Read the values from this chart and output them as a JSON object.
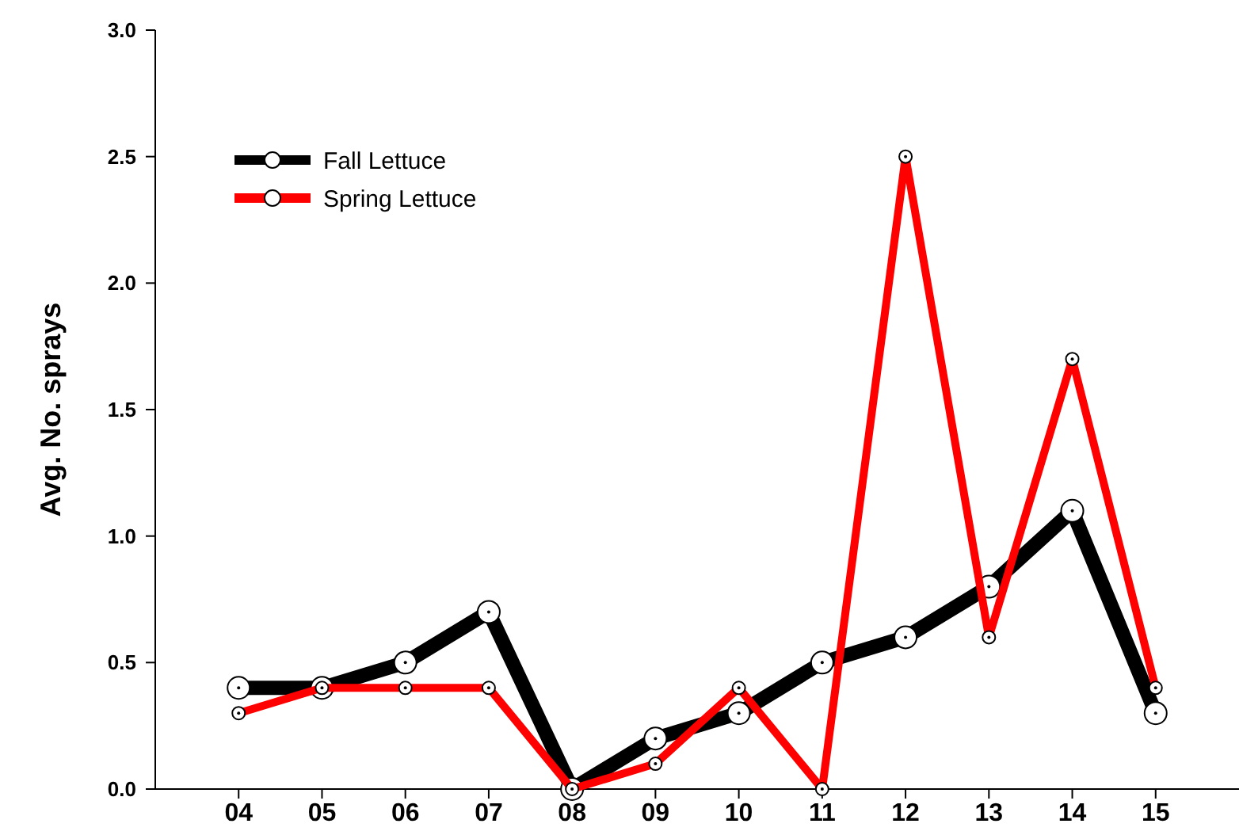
{
  "chart_data": {
    "type": "line",
    "ylabel": "Avg. No. sprays",
    "categories": [
      "04",
      "05",
      "06",
      "07",
      "08",
      "09",
      "10",
      "11",
      "12",
      "13",
      "14",
      "15"
    ],
    "series": [
      {
        "name": "Fall Lettuce",
        "color": "#000000",
        "values": [
          0.4,
          0.4,
          0.5,
          0.7,
          0.0,
          0.2,
          0.3,
          0.5,
          0.6,
          0.8,
          1.1,
          0.3
        ]
      },
      {
        "name": "Spring Lettuce",
        "color": "#ff0000",
        "values": [
          0.3,
          0.4,
          0.4,
          0.4,
          0.0,
          0.1,
          0.4,
          0.0,
          2.5,
          0.6,
          1.7,
          0.4
        ]
      }
    ],
    "ylim": [
      0,
      3
    ],
    "yticks": [
      {
        "value": 0,
        "label": "0.0"
      },
      {
        "value": 0.5,
        "label": "0.5"
      },
      {
        "value": 1,
        "label": "1.0"
      },
      {
        "value": 1.5,
        "label": "1.5"
      },
      {
        "value": 2,
        "label": "2.0"
      },
      {
        "value": 2.5,
        "label": "2.5"
      },
      {
        "value": 3,
        "label": "3.0"
      }
    ],
    "grid": false,
    "legend": "top left",
    "marker": "circle",
    "line_style": "solid"
  }
}
